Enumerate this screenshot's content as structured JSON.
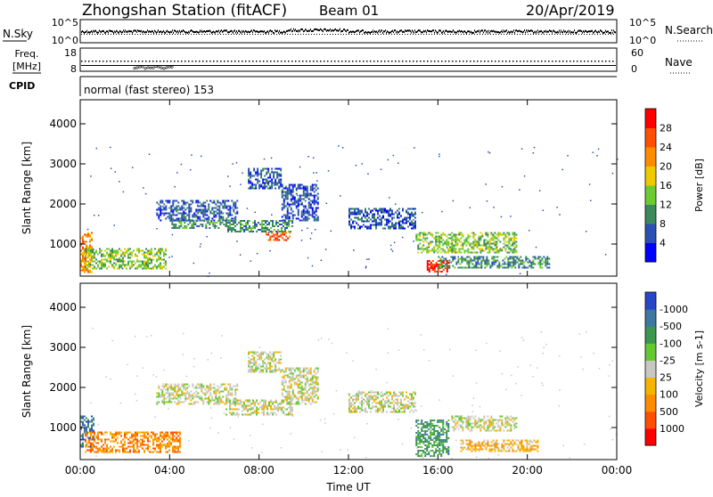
{
  "header": {
    "station": "Zhongshan Station (fitACF)",
    "beam": "Beam 01",
    "date": "20/Apr/2019"
  },
  "sky_panel": {
    "left_label": "N.Sky",
    "right_label": "N.Search",
    "left_ticks": [
      "10^5",
      "10^0"
    ],
    "right_ticks": [
      "10^5",
      "10^0"
    ]
  },
  "freq_panel": {
    "left_label_1": "Freq.",
    "left_label_2": "[MHz]",
    "right_label": "Nave",
    "left_ticks": [
      "18",
      "8"
    ],
    "right_ticks": [
      "60",
      "0"
    ]
  },
  "cpid": {
    "label": "CPID",
    "text": "normal (fast stereo) 153"
  },
  "chart_data": [
    {
      "type": "heatmap",
      "title": "",
      "xlabel": "",
      "ylabel": "Slant Range [km]",
      "x_ticks": [
        "00:00",
        "04:00",
        "08:00",
        "12:00",
        "16:00",
        "20:00",
        "00:00"
      ],
      "y_ticks": [
        1000,
        2000,
        3000,
        4000
      ],
      "ylim": [
        200,
        4600
      ],
      "xlim_hours": [
        0,
        24
      ],
      "colorbar": {
        "label": "Power [dB]",
        "ticks": [
          "4",
          "8",
          "12",
          "16",
          "20",
          "24",
          "28"
        ],
        "colors": [
          "#0000ff",
          "#2a50b4",
          "#3a8a5a",
          "#6acc32",
          "#f0c800",
          "#ff8c00",
          "#ff5000",
          "#ff0000"
        ]
      },
      "regions": [
        {
          "t0": 0.0,
          "t1": 0.5,
          "r0": 300,
          "r1": 1300,
          "level": 5
        },
        {
          "t0": 0.2,
          "t1": 3.8,
          "r0": 400,
          "r1": 900,
          "level": 3
        },
        {
          "t0": 3.4,
          "t1": 7.0,
          "r0": 1600,
          "r1": 2100,
          "level": 1
        },
        {
          "t0": 4.0,
          "t1": 6.5,
          "r0": 1400,
          "r1": 1600,
          "level": 2
        },
        {
          "t0": 6.5,
          "t1": 9.5,
          "r0": 1300,
          "r1": 1600,
          "level": 2
        },
        {
          "t0": 8.3,
          "t1": 9.4,
          "r0": 1100,
          "r1": 1300,
          "level": 6
        },
        {
          "t0": 7.5,
          "t1": 9.0,
          "r0": 2400,
          "r1": 2900,
          "level": 1
        },
        {
          "t0": 9.0,
          "t1": 10.6,
          "r0": 1600,
          "r1": 2500,
          "level": 1
        },
        {
          "t0": 12.0,
          "t1": 15.0,
          "r0": 1400,
          "r1": 1900,
          "level": 1
        },
        {
          "t0": 15.0,
          "t1": 16.6,
          "r0": 800,
          "r1": 1300,
          "level": 3
        },
        {
          "t0": 15.5,
          "t1": 16.5,
          "r0": 300,
          "r1": 600,
          "level": 7
        },
        {
          "t0": 16.6,
          "t1": 19.5,
          "r0": 800,
          "r1": 1300,
          "level": 3
        },
        {
          "t0": 16.0,
          "t1": 21.0,
          "r0": 400,
          "r1": 700,
          "level": 2
        }
      ]
    },
    {
      "type": "heatmap",
      "title": "",
      "xlabel": "Time UT",
      "ylabel": "Slant Range [km]",
      "x_ticks": [
        "00:00",
        "04:00",
        "08:00",
        "12:00",
        "16:00",
        "20:00",
        "00:00"
      ],
      "y_ticks": [
        1000,
        2000,
        3000,
        4000
      ],
      "ylim": [
        200,
        4600
      ],
      "xlim_hours": [
        0,
        24
      ],
      "colorbar": {
        "label": "Velocity [m s-1]",
        "ticks": [
          "1000",
          "500",
          "100",
          "25",
          "-25",
          "-100",
          "-500",
          "-1000"
        ],
        "colors": [
          "#2846c8",
          "#3c78a0",
          "#3c9650",
          "#64c832",
          "#c8c8c3",
          "#f5b400",
          "#ff8c00",
          "#ff5000",
          "#ff0000"
        ]
      },
      "regions": [
        {
          "t0": 0.0,
          "t1": 0.6,
          "r0": 500,
          "r1": 1300,
          "level": 1
        },
        {
          "t0": 0.2,
          "t1": 4.5,
          "r0": 400,
          "r1": 900,
          "level": 6
        },
        {
          "t0": 3.4,
          "t1": 7.0,
          "r0": 1600,
          "r1": 2100,
          "level": 4
        },
        {
          "t0": 6.5,
          "t1": 9.5,
          "r0": 1300,
          "r1": 1700,
          "level": 4
        },
        {
          "t0": 7.5,
          "t1": 9.0,
          "r0": 2400,
          "r1": 2900,
          "level": 4
        },
        {
          "t0": 9.0,
          "t1": 10.6,
          "r0": 1600,
          "r1": 2500,
          "level": 4
        },
        {
          "t0": 12.0,
          "t1": 15.0,
          "r0": 1400,
          "r1": 1900,
          "level": 4
        },
        {
          "t0": 15.0,
          "t1": 16.5,
          "r0": 300,
          "r1": 1200,
          "level": 2
        },
        {
          "t0": 16.6,
          "t1": 19.5,
          "r0": 900,
          "r1": 1300,
          "level": 4
        },
        {
          "t0": 17.0,
          "t1": 20.5,
          "r0": 400,
          "r1": 700,
          "level": 5
        }
      ]
    }
  ]
}
